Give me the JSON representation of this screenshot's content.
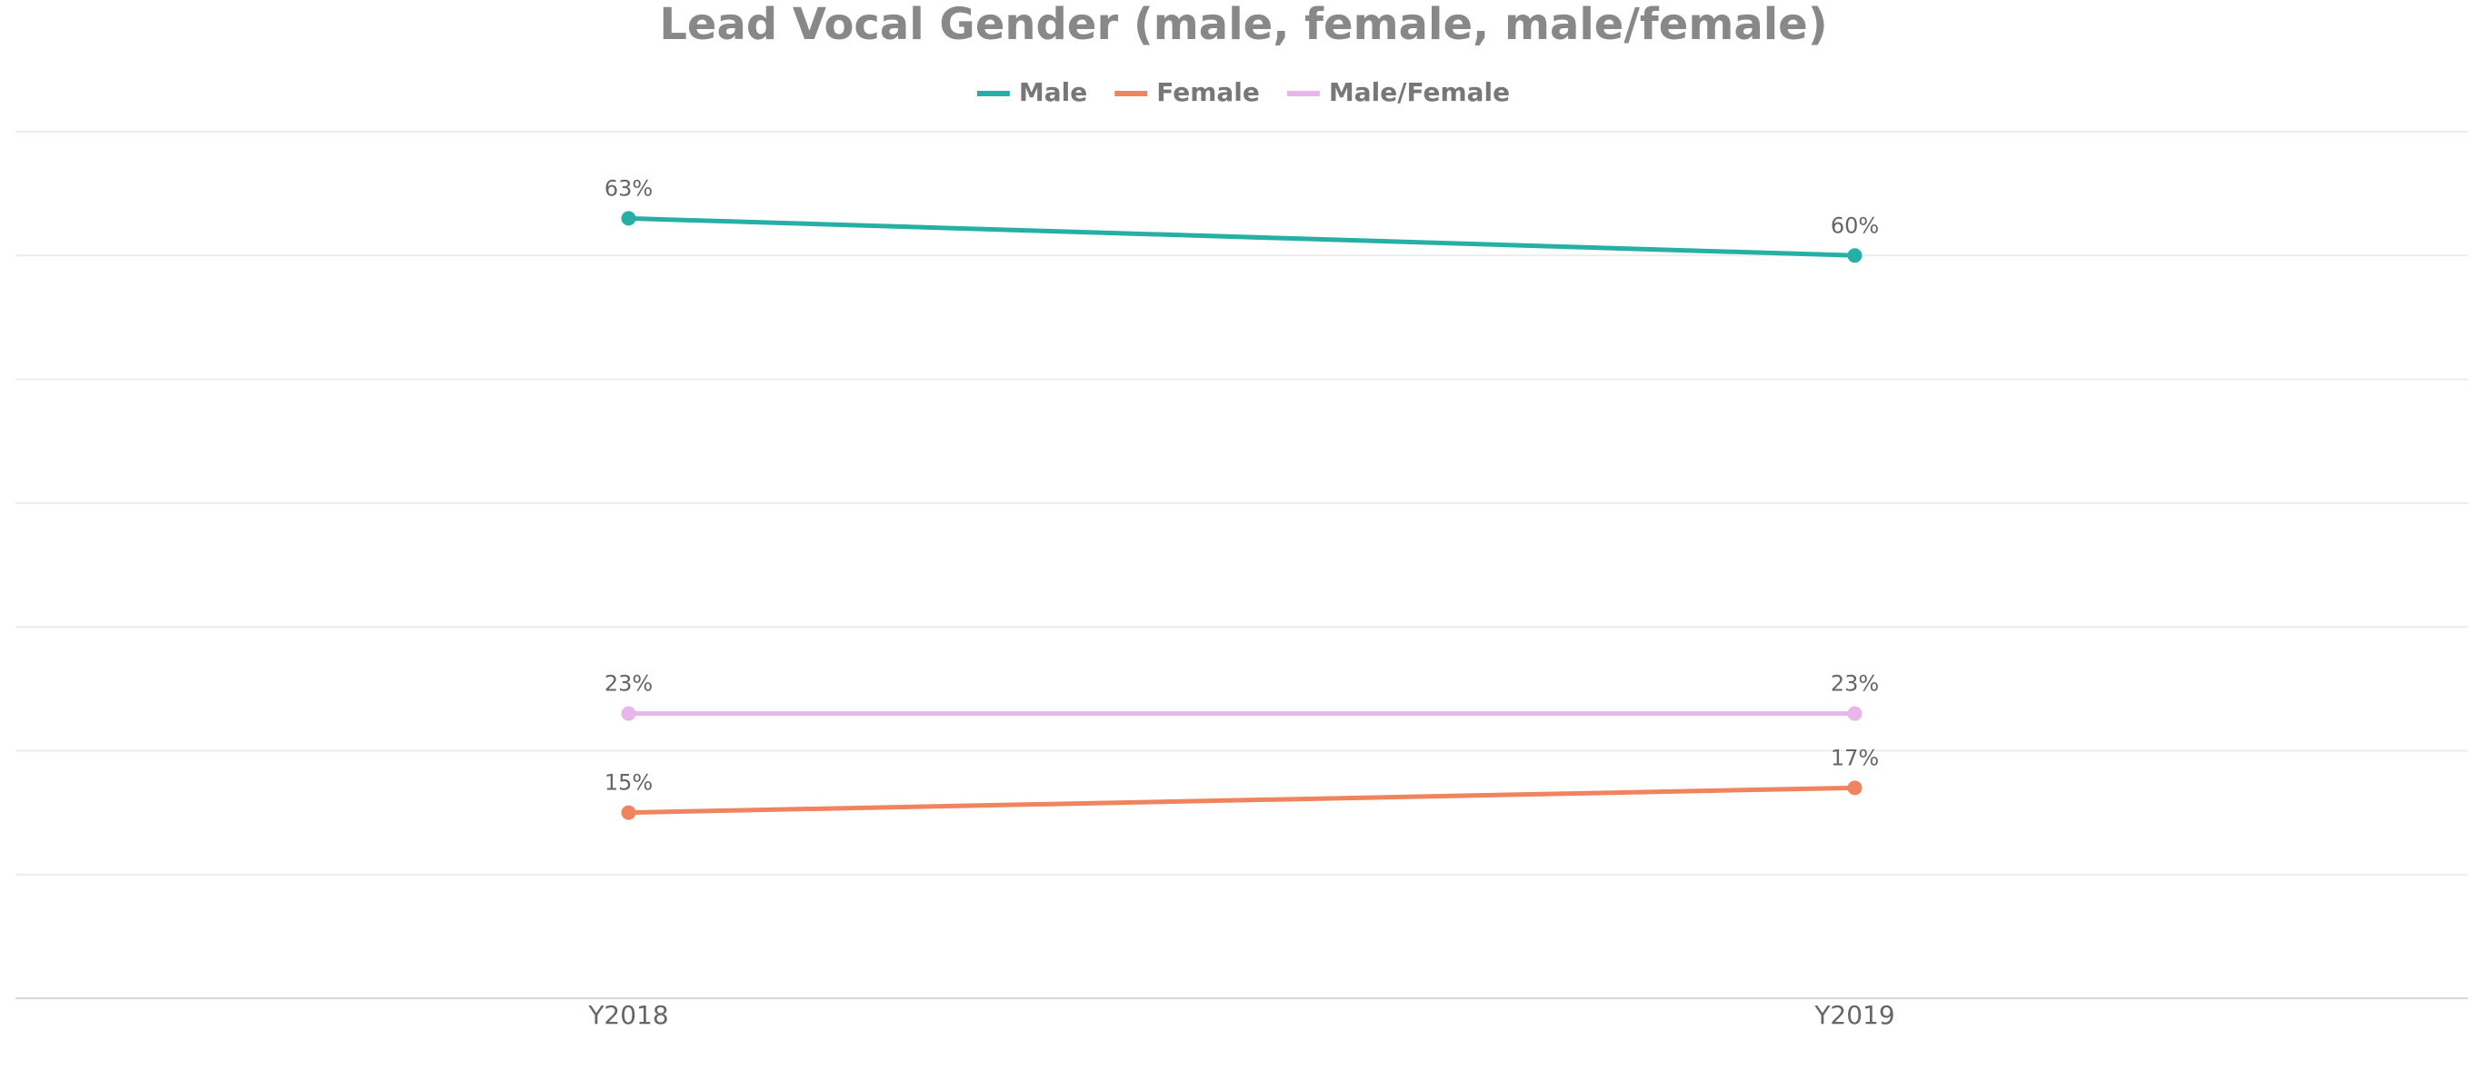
{
  "chart_data": {
    "type": "line",
    "title": "Lead Vocal Gender (male, female, male/female)",
    "categories": [
      "Y2018",
      "Y2019"
    ],
    "series": [
      {
        "name": "Male",
        "color": "#26afa5",
        "values": [
          63,
          60
        ],
        "value_labels": [
          "63%",
          "60%"
        ]
      },
      {
        "name": "Female",
        "color": "#f0845e",
        "values": [
          15,
          17
        ],
        "value_labels": [
          "15%",
          "17%"
        ]
      },
      {
        "name": "Male/Female",
        "color": "#e9b6e9",
        "values": [
          23,
          23
        ],
        "value_labels": [
          "23%",
          "23%"
        ]
      }
    ],
    "ylim": [
      0,
      70
    ],
    "yticks": [
      0,
      10,
      20,
      30,
      40,
      50,
      60,
      70
    ],
    "grid": true,
    "legend": "top"
  }
}
